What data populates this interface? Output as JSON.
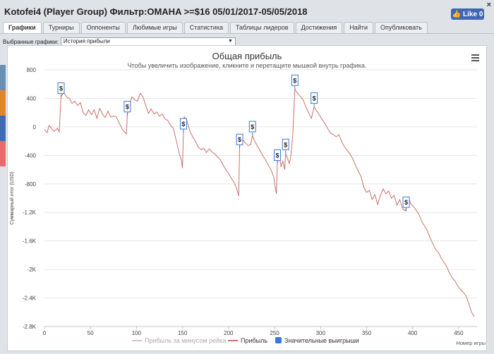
{
  "window": {
    "title": "Kotofei4 (Player Group) Фильтр:OMAHA >=$16 05/01/2017-05/05/2018",
    "close_glyph": "×",
    "like_label": "Like 0"
  },
  "tabs": [
    "Графики",
    "Турниры",
    "Оппоненты",
    "Любимые игры",
    "Статистика",
    "Таблицы лидеров",
    "Достижения",
    "Найти",
    "Опубликовать"
  ],
  "active_tab": 0,
  "selector": {
    "label": "Выбранные графики:",
    "value": "История прибыли"
  },
  "side_colors": [
    "#6a8fb5",
    "#e0862a",
    "#3f6bb5",
    "#e86a6a"
  ],
  "chart_data": {
    "type": "line",
    "title": "Общая прибыль",
    "subtitle": "Чтобы увеличить изображение, кликните и перетащите мышкой внутрь графика.",
    "xlabel": "Номер игры",
    "ylabel": "Суммарный итог (USD)",
    "xlim": [
      0,
      470
    ],
    "ylim": [
      -2800,
      800
    ],
    "x_ticks": [
      0,
      50,
      100,
      150,
      200,
      250,
      300,
      350,
      400,
      450
    ],
    "y_ticks": [
      {
        "value": 800,
        "label": "800"
      },
      {
        "value": 400,
        "label": "400"
      },
      {
        "value": 0,
        "label": "0"
      },
      {
        "value": -400,
        "label": "-400"
      },
      {
        "value": -800,
        "label": "-800"
      },
      {
        "value": -1200,
        "label": "-1.2K"
      },
      {
        "value": -1600,
        "label": "-1.6K"
      },
      {
        "value": -2000,
        "label": "-2K"
      },
      {
        "value": -2400,
        "label": "-2.4K"
      },
      {
        "value": -2800,
        "label": "-2.8K"
      }
    ],
    "series": [
      {
        "name": "Прибыль",
        "color": "#c9716c",
        "points": [
          [
            0,
            -40
          ],
          [
            3,
            -80
          ],
          [
            5,
            20
          ],
          [
            8,
            -30
          ],
          [
            11,
            -60
          ],
          [
            14,
            -20
          ],
          [
            16,
            -70
          ],
          [
            18,
            420
          ],
          [
            21,
            480
          ],
          [
            24,
            420
          ],
          [
            27,
            400
          ],
          [
            30,
            330
          ],
          [
            33,
            360
          ],
          [
            36,
            300
          ],
          [
            39,
            340
          ],
          [
            42,
            200
          ],
          [
            45,
            160
          ],
          [
            48,
            240
          ],
          [
            51,
            170
          ],
          [
            54,
            240
          ],
          [
            57,
            120
          ],
          [
            60,
            260
          ],
          [
            63,
            180
          ],
          [
            66,
            130
          ],
          [
            69,
            220
          ],
          [
            72,
            140
          ],
          [
            75,
            150
          ],
          [
            78,
            140
          ],
          [
            81,
            60
          ],
          [
            84,
            -20
          ],
          [
            86,
            -60
          ],
          [
            89,
            -100
          ],
          [
            90,
            160
          ],
          [
            92,
            300
          ],
          [
            95,
            420
          ],
          [
            98,
            380
          ],
          [
            101,
            360
          ],
          [
            104,
            470
          ],
          [
            107,
            420
          ],
          [
            110,
            300
          ],
          [
            113,
            190
          ],
          [
            116,
            250
          ],
          [
            119,
            180
          ],
          [
            122,
            210
          ],
          [
            125,
            150
          ],
          [
            128,
            180
          ],
          [
            131,
            110
          ],
          [
            134,
            90
          ],
          [
            137,
            20
          ],
          [
            140,
            -20
          ],
          [
            143,
            -180
          ],
          [
            146,
            -350
          ],
          [
            149,
            -480
          ],
          [
            150,
            -580
          ],
          [
            151,
            -80
          ],
          [
            152,
            140
          ],
          [
            155,
            80
          ],
          [
            158,
            -60
          ],
          [
            161,
            -140
          ],
          [
            164,
            -200
          ],
          [
            167,
            -280
          ],
          [
            170,
            -320
          ],
          [
            173,
            -300
          ],
          [
            176,
            -360
          ],
          [
            179,
            -310
          ],
          [
            182,
            -350
          ],
          [
            185,
            -380
          ],
          [
            188,
            -420
          ],
          [
            191,
            -460
          ],
          [
            194,
            -530
          ],
          [
            197,
            -600
          ],
          [
            200,
            -650
          ],
          [
            203,
            -720
          ],
          [
            206,
            -780
          ],
          [
            209,
            -870
          ],
          [
            211,
            -970
          ],
          [
            212,
            -300
          ],
          [
            213,
            -110
          ],
          [
            215,
            -170
          ],
          [
            218,
            -220
          ],
          [
            221,
            -260
          ],
          [
            224,
            -250
          ],
          [
            226,
            -120
          ],
          [
            228,
            -190
          ],
          [
            231,
            -260
          ],
          [
            234,
            -330
          ],
          [
            237,
            -400
          ],
          [
            240,
            -460
          ],
          [
            243,
            -530
          ],
          [
            246,
            -600
          ],
          [
            249,
            -700
          ],
          [
            251,
            -870
          ],
          [
            252,
            -940
          ],
          [
            253,
            -520
          ],
          [
            255,
            -380
          ],
          [
            257,
            -560
          ],
          [
            259,
            -480
          ],
          [
            261,
            -600
          ],
          [
            262,
            -370
          ],
          [
            264,
            -440
          ],
          [
            266,
            -520
          ],
          [
            268,
            -380
          ],
          [
            270,
            -80
          ],
          [
            272,
            530
          ],
          [
            275,
            470
          ],
          [
            278,
            430
          ],
          [
            281,
            380
          ],
          [
            284,
            280
          ],
          [
            287,
            200
          ],
          [
            290,
            120
          ],
          [
            293,
            280
          ],
          [
            296,
            220
          ],
          [
            299,
            160
          ],
          [
            302,
            100
          ],
          [
            305,
            40
          ],
          [
            308,
            -30
          ],
          [
            311,
            -90
          ],
          [
            314,
            -110
          ],
          [
            317,
            -140
          ],
          [
            320,
            -110
          ],
          [
            323,
            -210
          ],
          [
            326,
            -280
          ],
          [
            329,
            -330
          ],
          [
            332,
            -380
          ],
          [
            335,
            -450
          ],
          [
            338,
            -540
          ],
          [
            341,
            -620
          ],
          [
            344,
            -700
          ],
          [
            347,
            -850
          ],
          [
            350,
            -920
          ],
          [
            353,
            -890
          ],
          [
            356,
            -1020
          ],
          [
            359,
            -950
          ],
          [
            362,
            -1090
          ],
          [
            365,
            -960
          ],
          [
            368,
            -870
          ],
          [
            371,
            -940
          ],
          [
            374,
            -900
          ],
          [
            377,
            -1000
          ],
          [
            380,
            -960
          ],
          [
            383,
            -1100
          ],
          [
            386,
            -1020
          ],
          [
            389,
            -1150
          ],
          [
            392,
            -1180
          ],
          [
            394,
            -1090
          ],
          [
            396,
            -1010
          ],
          [
            398,
            -1080
          ],
          [
            401,
            -1120
          ],
          [
            404,
            -1170
          ],
          [
            407,
            -1230
          ],
          [
            410,
            -1330
          ],
          [
            413,
            -1390
          ],
          [
            416,
            -1460
          ],
          [
            419,
            -1560
          ],
          [
            422,
            -1640
          ],
          [
            425,
            -1720
          ],
          [
            428,
            -1760
          ],
          [
            431,
            -1840
          ],
          [
            434,
            -1900
          ],
          [
            437,
            -1960
          ],
          [
            440,
            -2050
          ],
          [
            443,
            -2120
          ],
          [
            446,
            -2160
          ],
          [
            449,
            -2230
          ],
          [
            452,
            -2280
          ],
          [
            455,
            -2320
          ],
          [
            458,
            -2370
          ],
          [
            461,
            -2480
          ],
          [
            464,
            -2600
          ],
          [
            467,
            -2660
          ]
        ]
      }
    ],
    "marker_label": "$",
    "big_wins": [
      18,
      90,
      151,
      212,
      226,
      253,
      262,
      272,
      293,
      393
    ],
    "legend": [
      {
        "name": "Прибыль за минусом рейка",
        "color": "#c8c8c8"
      },
      {
        "name": "Прибыль",
        "color": "#c9716c"
      },
      {
        "name": "Значительные выигрыши",
        "color": "#3a78d8"
      }
    ]
  }
}
